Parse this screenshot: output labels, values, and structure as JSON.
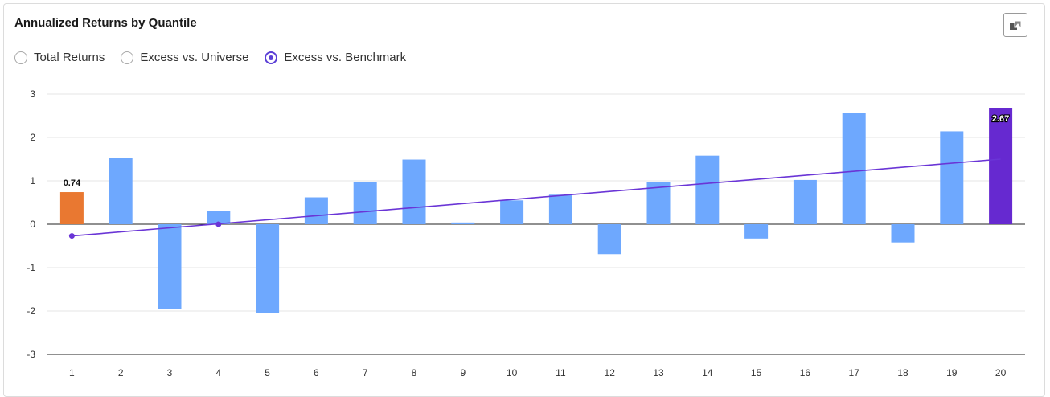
{
  "card": {
    "title": "Annualized Returns by Quantile"
  },
  "radio_options": [
    {
      "label": "Total Returns",
      "selected": false
    },
    {
      "label": "Excess vs. Universe",
      "selected": false
    },
    {
      "label": "Excess vs. Benchmark",
      "selected": true
    }
  ],
  "colors": {
    "bar_default": "#6ea8fe",
    "bar_first": "#e97831",
    "bar_last": "#6629d0",
    "trend_line": "#6a35d6",
    "accent": "#5b3fd6"
  },
  "chart_data": {
    "type": "bar",
    "title": "",
    "xlabel": "",
    "ylabel": "",
    "categories": [
      "1",
      "2",
      "3",
      "4",
      "5",
      "6",
      "7",
      "8",
      "9",
      "10",
      "11",
      "12",
      "13",
      "14",
      "15",
      "16",
      "17",
      "18",
      "19",
      "20"
    ],
    "values": [
      0.74,
      1.52,
      -1.96,
      0.3,
      -2.04,
      0.62,
      0.97,
      1.49,
      0.04,
      0.55,
      0.68,
      -0.69,
      0.97,
      1.58,
      -0.33,
      1.02,
      2.56,
      -0.42,
      2.14,
      2.67
    ],
    "ylim": [
      -3,
      3
    ],
    "yticks": [
      3,
      2,
      1,
      0,
      -1,
      -2,
      -3
    ],
    "data_labels": [
      {
        "index": 0,
        "text": "0.74"
      },
      {
        "index": 19,
        "text": "2.67"
      }
    ],
    "trend_line": {
      "start": {
        "x": "1",
        "y": -0.27
      },
      "end": {
        "x": "20",
        "y": 1.5
      },
      "markers": [
        {
          "x": "1",
          "y": -0.27
        },
        {
          "x": "4",
          "y": 0.0
        }
      ]
    },
    "grid": true,
    "legend": "none"
  }
}
